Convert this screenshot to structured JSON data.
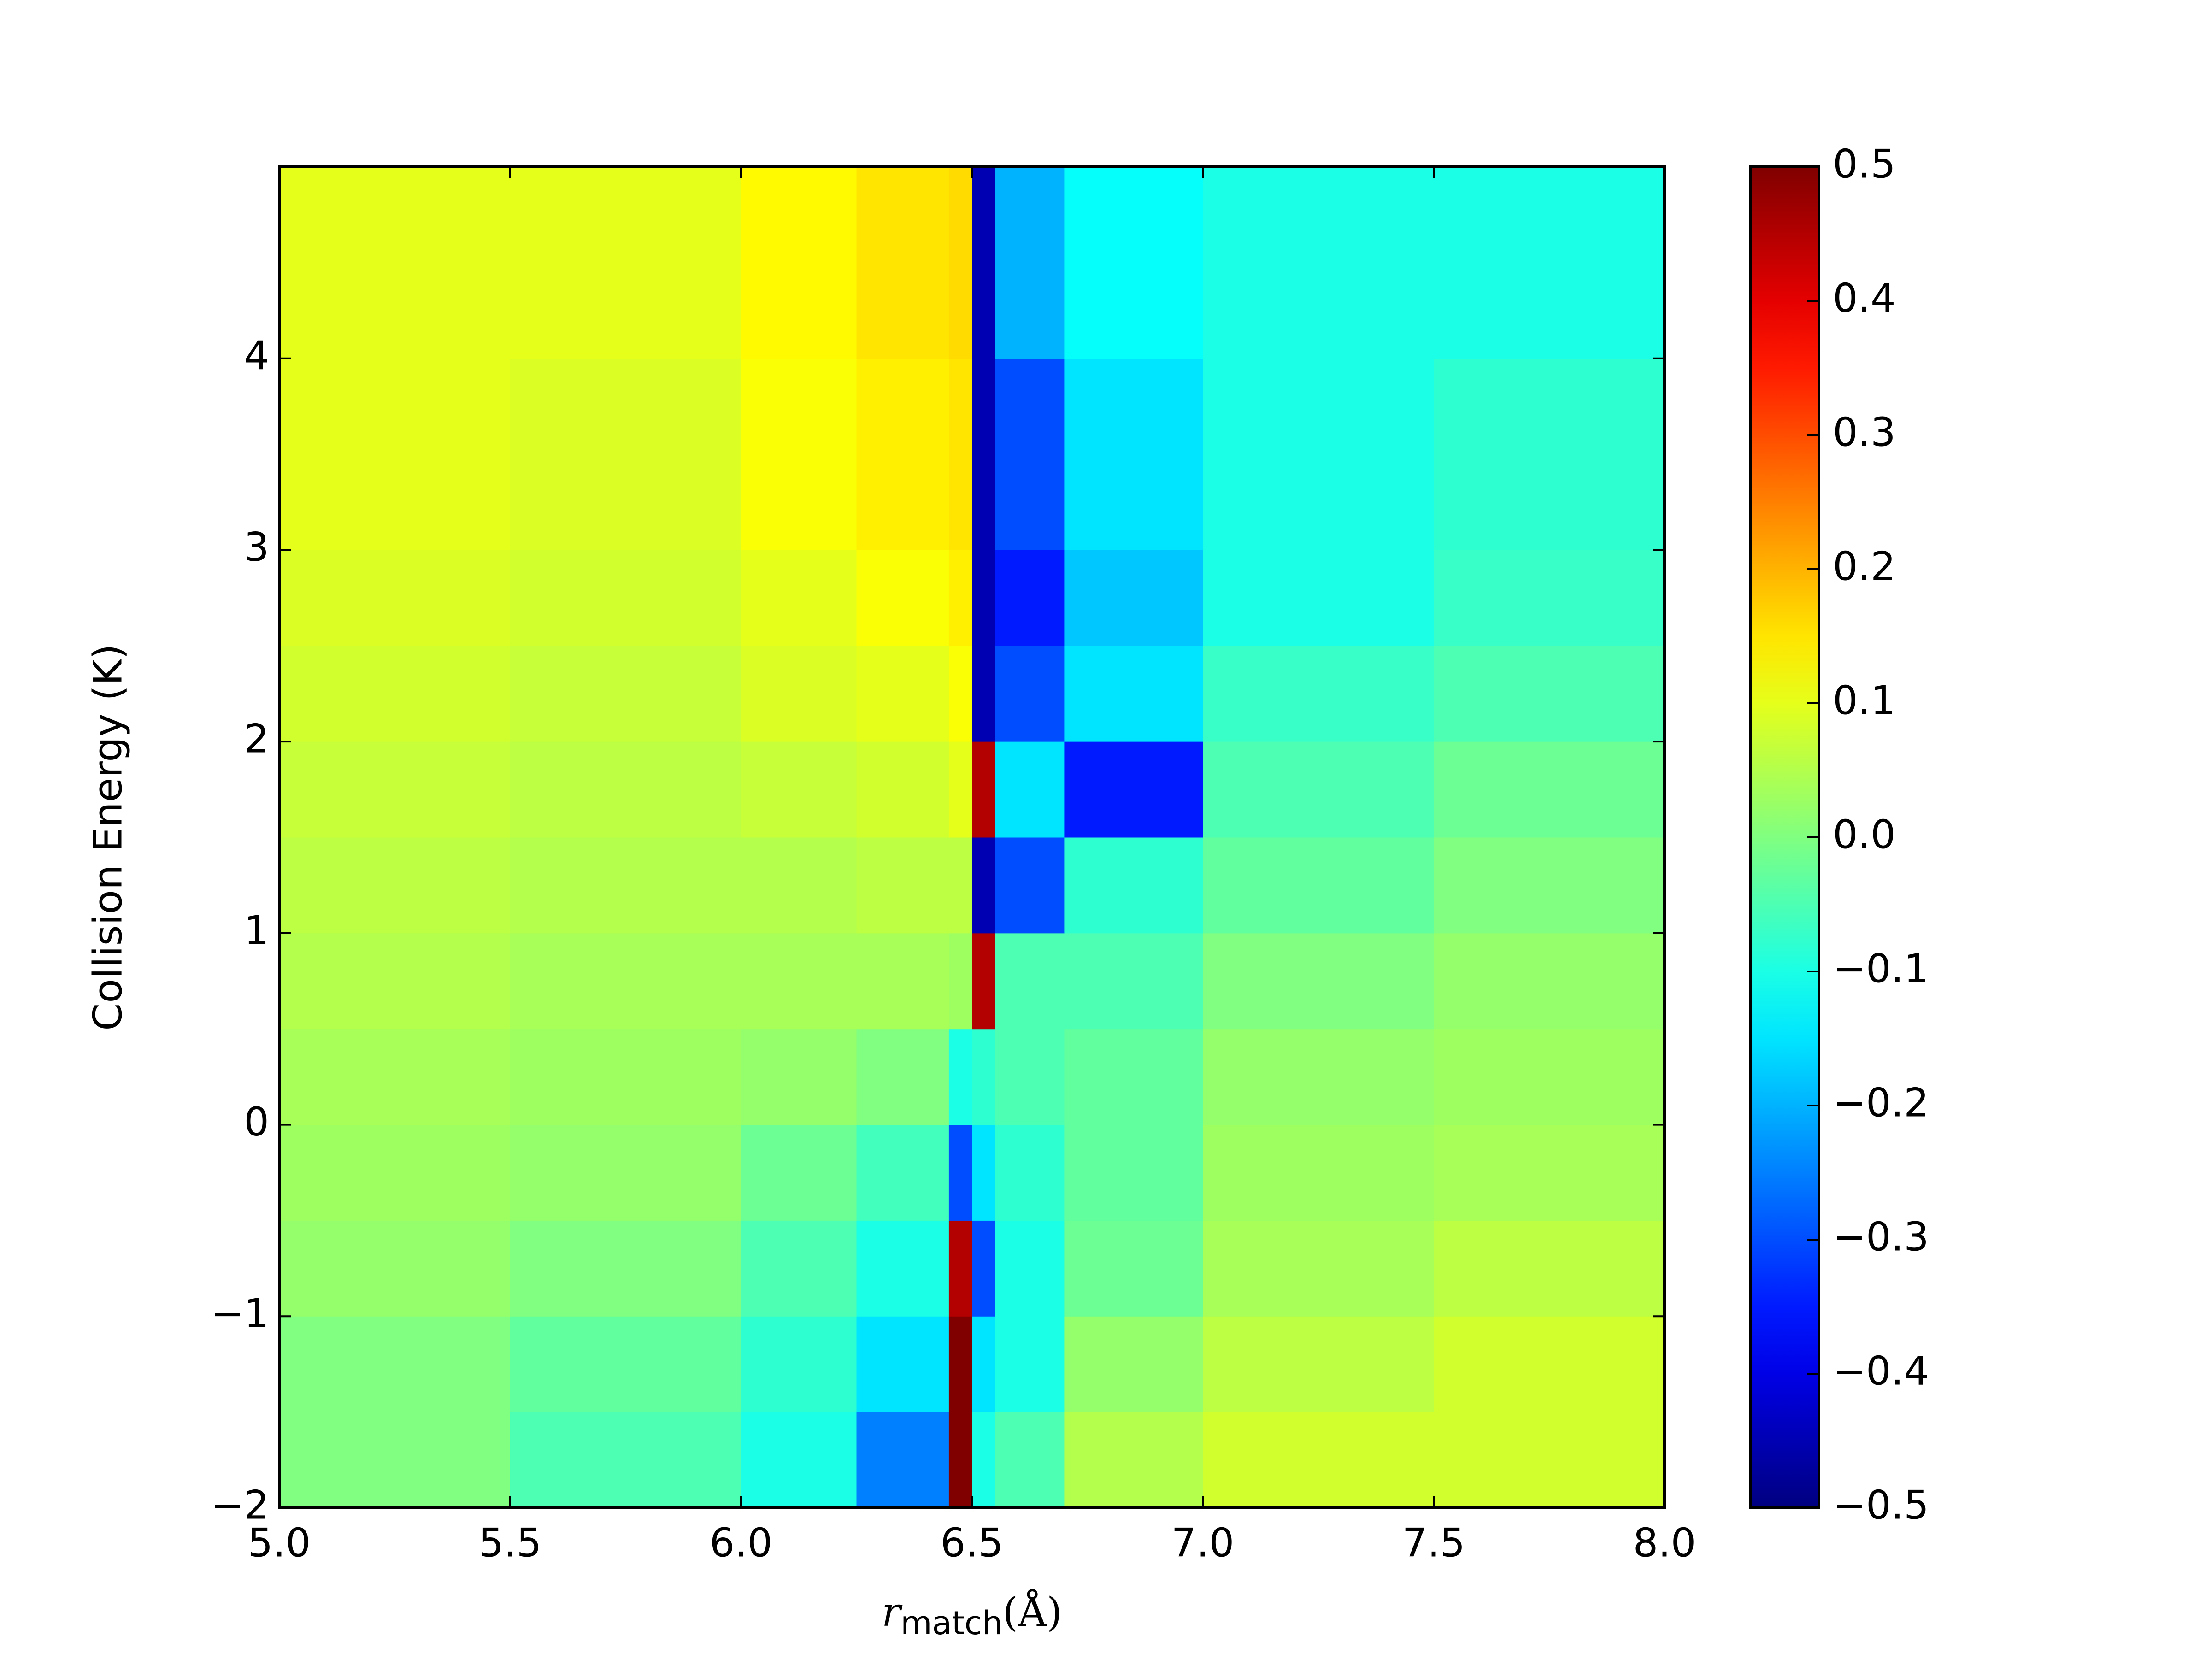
{
  "chart_data": {
    "type": "heatmap",
    "xlabel": {
      "symbol": "r",
      "subscript": "match",
      "unit": "(Å)"
    },
    "ylabel": "Collision Energy (K)",
    "xlim": [
      5.0,
      8.0
    ],
    "ylim": [
      -2,
      5
    ],
    "xticks": [
      {
        "value": 5.0,
        "label": "5.0"
      },
      {
        "value": 5.5,
        "label": "5.5"
      },
      {
        "value": 6.0,
        "label": "6.0"
      },
      {
        "value": 6.5,
        "label": "6.5"
      },
      {
        "value": 7.0,
        "label": "7.0"
      },
      {
        "value": 7.5,
        "label": "7.5"
      },
      {
        "value": 8.0,
        "label": "8.0"
      }
    ],
    "yticks": [
      {
        "value": -2,
        "label": "−2"
      },
      {
        "value": -1,
        "label": "−1"
      },
      0,
      1,
      2,
      3,
      4
    ],
    "xbins": [
      5.0,
      5.5,
      6.0,
      6.25,
      6.45,
      6.5,
      6.55,
      6.7,
      7.0,
      7.5,
      8.0
    ],
    "ybins": [
      -2,
      -1.5,
      -1,
      -0.5,
      0,
      0.5,
      1,
      1.5,
      2,
      2.5,
      3,
      4,
      5
    ],
    "z": [
      [
        0.0,
        -0.05,
        -0.1,
        -0.25,
        0.5,
        -0.1,
        -0.05,
        0.05,
        0.08,
        0.08
      ],
      [
        0.0,
        -0.03,
        -0.08,
        -0.15,
        0.5,
        -0.15,
        -0.1,
        0.02,
        0.06,
        0.08
      ],
      [
        0.02,
        0.0,
        -0.05,
        -0.1,
        0.45,
        -0.3,
        -0.1,
        -0.02,
        0.04,
        0.06
      ],
      [
        0.03,
        0.02,
        -0.02,
        -0.06,
        -0.3,
        -0.15,
        -0.08,
        -0.03,
        0.03,
        0.04
      ],
      [
        0.04,
        0.03,
        0.02,
        0.0,
        -0.1,
        -0.08,
        -0.05,
        -0.03,
        0.02,
        0.03
      ],
      [
        0.05,
        0.04,
        0.04,
        0.04,
        0.03,
        0.45,
        -0.05,
        -0.05,
        0.0,
        0.02
      ],
      [
        0.06,
        0.05,
        0.05,
        0.06,
        0.06,
        -0.45,
        -0.3,
        -0.08,
        -0.03,
        0.0
      ],
      [
        0.07,
        0.06,
        0.07,
        0.08,
        0.1,
        0.45,
        -0.15,
        -0.35,
        -0.05,
        -0.02
      ],
      [
        0.08,
        0.07,
        0.09,
        0.1,
        0.12,
        -0.45,
        -0.3,
        -0.15,
        -0.07,
        -0.05
      ],
      [
        0.09,
        0.08,
        0.1,
        0.12,
        0.14,
        -0.45,
        -0.35,
        -0.18,
        -0.1,
        -0.07
      ],
      [
        0.1,
        0.09,
        0.12,
        0.14,
        0.15,
        -0.45,
        -0.3,
        -0.15,
        -0.1,
        -0.08
      ],
      [
        0.1,
        0.1,
        0.13,
        0.15,
        0.16,
        -0.45,
        -0.2,
        -0.12,
        -0.1,
        -0.1
      ]
    ],
    "colormap": "jet",
    "clim": [
      -0.5,
      0.5
    ],
    "cticks": [
      {
        "value": -0.5,
        "label": "−0.5"
      },
      {
        "value": -0.4,
        "label": "−0.4"
      },
      {
        "value": -0.3,
        "label": "−0.3"
      },
      {
        "value": -0.2,
        "label": "−0.2"
      },
      {
        "value": -0.1,
        "label": "−0.1"
      },
      {
        "value": 0.0,
        "label": "0.0"
      },
      0.1,
      0.2,
      0.3,
      0.4,
      0.5
    ]
  }
}
